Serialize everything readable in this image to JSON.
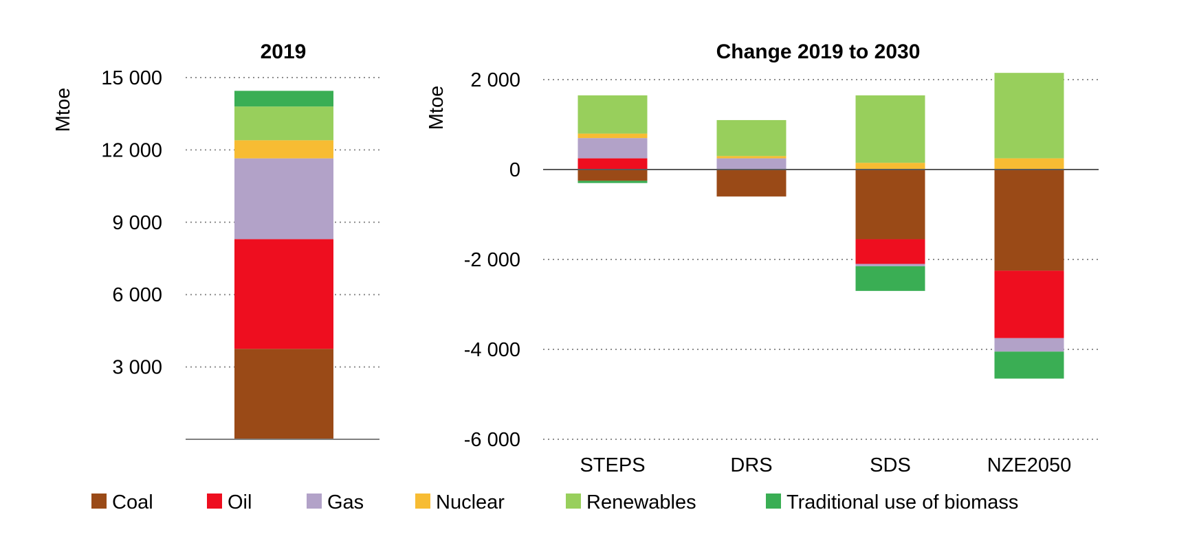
{
  "colors": {
    "Coal": "#9a4a17",
    "Oil": "#ee0e1f",
    "Gas": "#b2a2c8",
    "Nuclear": "#f7bc33",
    "Renewables": "#98cf5c",
    "Traditional use of biomass": "#3aae54"
  },
  "legend": [
    "Coal",
    "Oil",
    "Gas",
    "Nuclear",
    "Renewables",
    "Traditional use of biomass"
  ],
  "chart_data": [
    {
      "type": "bar",
      "stacked": true,
      "title": "2019",
      "ylabel": "Mtoe",
      "xlabel": "",
      "ylim": [
        0,
        15000
      ],
      "yticks": [
        3000,
        6000,
        9000,
        12000,
        15000
      ],
      "ytick_labels": [
        "3 000",
        "6 000",
        "9 000",
        "12 000",
        "15 000"
      ],
      "grid": "dotted horizontal",
      "categories": [
        ""
      ],
      "series": [
        {
          "name": "Coal",
          "values": [
            3750
          ]
        },
        {
          "name": "Oil",
          "values": [
            4550
          ]
        },
        {
          "name": "Gas",
          "values": [
            3350
          ]
        },
        {
          "name": "Nuclear",
          "values": [
            750
          ]
        },
        {
          "name": "Renewables",
          "values": [
            1400
          ]
        },
        {
          "name": "Traditional use of biomass",
          "values": [
            650
          ]
        }
      ]
    },
    {
      "type": "bar",
      "stacked": true,
      "title": "Change 2019 to 2030",
      "ylabel": "Mtoe",
      "xlabel": "",
      "ylim": [
        -6000,
        2000
      ],
      "yticks": [
        -6000,
        -4000,
        -2000,
        0,
        2000
      ],
      "ytick_labels": [
        "-6 000",
        "-4 000",
        "-2 000",
        "0",
        "2 000"
      ],
      "grid": "dotted horizontal",
      "categories": [
        "STEPS",
        "DRS",
        "SDS",
        "NZE2050"
      ],
      "series": [
        {
          "name": "Coal",
          "values": [
            -250,
            -600,
            -1550,
            -2250
          ]
        },
        {
          "name": "Oil",
          "values": [
            250,
            0,
            -550,
            -1500
          ]
        },
        {
          "name": "Gas",
          "values": [
            450,
            250,
            -50,
            -300
          ]
        },
        {
          "name": "Nuclear",
          "values": [
            100,
            50,
            150,
            250
          ]
        },
        {
          "name": "Renewables",
          "values": [
            850,
            800,
            1500,
            1900
          ]
        },
        {
          "name": "Traditional use of biomass",
          "values": [
            -50,
            0,
            -550,
            -600
          ]
        }
      ]
    }
  ]
}
